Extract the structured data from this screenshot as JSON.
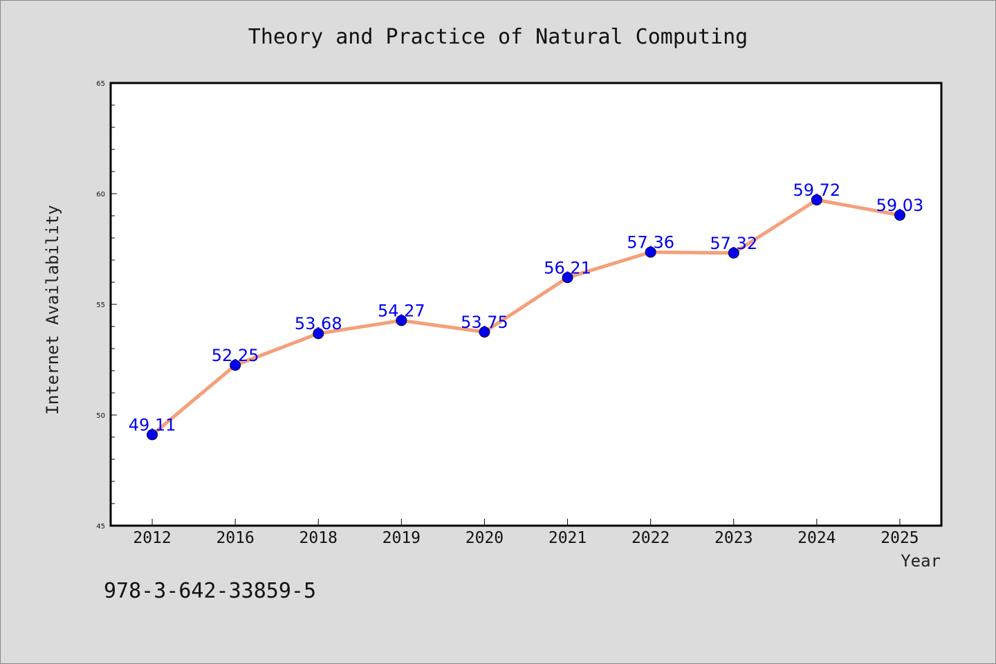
{
  "chart_data": {
    "type": "line",
    "title": "Theory and Practice of Natural Computing",
    "xlabel": "Year",
    "ylabel": "Internet Availability",
    "categories": [
      "2012",
      "2016",
      "2018",
      "2019",
      "2020",
      "2021",
      "2022",
      "2023",
      "2024",
      "2025"
    ],
    "series": [
      {
        "values": [
          49.11,
          52.25,
          53.68,
          54.27,
          53.75,
          56.21,
          57.36,
          57.32,
          59.72,
          59.03
        ],
        "data_labels": [
          "49.11",
          "52.25",
          "53.68",
          "54.27",
          "53.75",
          "56.21",
          "57.36",
          "57.32",
          "59.72",
          "59.03"
        ]
      }
    ],
    "ylim": [
      45,
      65
    ],
    "y_ticks": [
      "45",
      "50",
      "55",
      "60",
      "65"
    ],
    "grid": false,
    "colors": {
      "line": "#f4a07a",
      "marker": "#0000ee",
      "label": "#0000ee",
      "plot_background": "#ffffff",
      "page_background": "#dcdcdc"
    }
  },
  "footnote": "978-3-642-33859-5"
}
